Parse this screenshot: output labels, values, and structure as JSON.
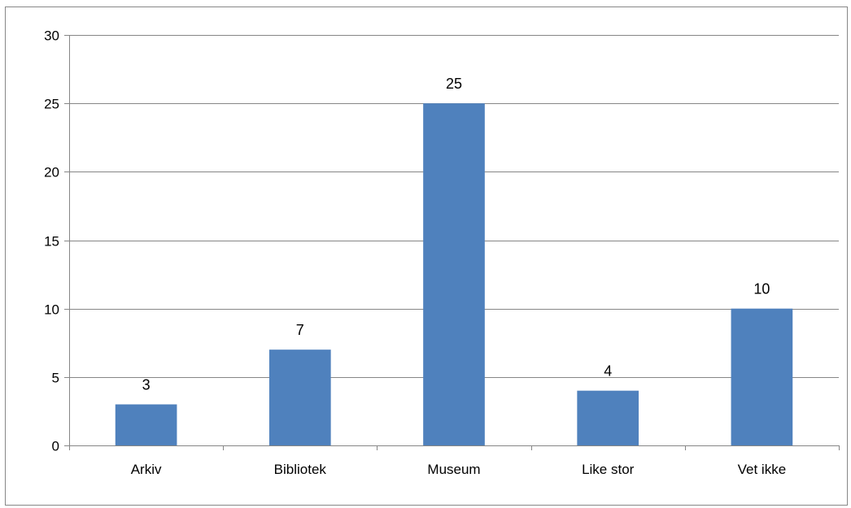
{
  "chart_data": {
    "type": "bar",
    "title": "",
    "xlabel": "",
    "ylabel": "",
    "categories": [
      "Arkiv",
      "Bibliotek",
      "Museum",
      "Like stor",
      "Vet ikke"
    ],
    "values": [
      3,
      7,
      25,
      4,
      10
    ],
    "data_labels": [
      "3",
      "7",
      "25",
      "4",
      "10"
    ],
    "ylim": [
      0,
      30
    ],
    "yticks": [
      0,
      5,
      10,
      15,
      20,
      25,
      30
    ],
    "ytick_labels": [
      "0",
      "5",
      "10",
      "15",
      "20",
      "25",
      "30"
    ],
    "grid": true,
    "legend": "none",
    "bar_color": "#4f81bd",
    "gridline_color": "#868686"
  }
}
